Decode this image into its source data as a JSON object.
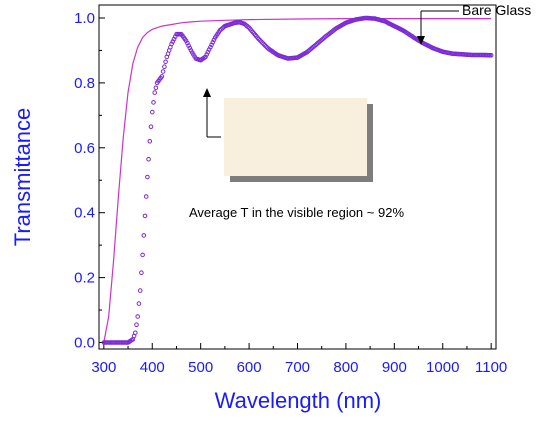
{
  "chart_data": {
    "type": "scatter",
    "xlabel": "Wavelength (nm)",
    "ylabel": "Transmittance",
    "xlim": [
      290,
      1110
    ],
    "ylim": [
      -0.02,
      1.04
    ],
    "x_ticks": [
      "300",
      "400",
      "500",
      "600",
      "700",
      "800",
      "900",
      "1000",
      "1100"
    ],
    "y_ticks": [
      "0.0",
      "0.2",
      "0.4",
      "0.6",
      "0.8",
      "1.0"
    ],
    "grid": false,
    "colors": {
      "axis_text": "#1a1aff",
      "sample_series": "#7a2bd6",
      "glass_series": "#cc33cc",
      "frame": "#000000"
    },
    "series": [
      {
        "name": "",
        "style": "open-circle markers",
        "x": [
          300,
          320,
          340,
          350,
          360,
          365,
          370,
          375,
          380,
          385,
          390,
          395,
          400,
          405,
          410,
          415,
          420,
          425,
          430,
          440,
          450,
          460,
          470,
          480,
          490,
          500,
          510,
          520,
          530,
          540,
          550,
          560,
          570,
          580,
          590,
          600,
          620,
          640,
          660,
          680,
          700,
          720,
          740,
          760,
          780,
          800,
          820,
          840,
          860,
          880,
          900,
          920,
          940,
          960,
          980,
          1000,
          1020,
          1040,
          1060,
          1080,
          1100
        ],
        "y": [
          0.0,
          0.0,
          0.0,
          0.0,
          0.01,
          0.03,
          0.08,
          0.16,
          0.27,
          0.39,
          0.51,
          0.62,
          0.71,
          0.77,
          0.8,
          0.81,
          0.82,
          0.85,
          0.88,
          0.92,
          0.95,
          0.95,
          0.93,
          0.9,
          0.875,
          0.87,
          0.88,
          0.91,
          0.94,
          0.962,
          0.975,
          0.98,
          0.985,
          0.987,
          0.982,
          0.97,
          0.935,
          0.905,
          0.885,
          0.875,
          0.878,
          0.895,
          0.92,
          0.945,
          0.968,
          0.985,
          0.995,
          1.0,
          0.998,
          0.99,
          0.975,
          0.96,
          0.94,
          0.922,
          0.907,
          0.896,
          0.89,
          0.888,
          0.886,
          0.886,
          0.885
        ]
      },
      {
        "name": "Bare Glass",
        "style": "line",
        "x": [
          300,
          310,
          320,
          330,
          340,
          350,
          360,
          370,
          380,
          390,
          400,
          420,
          440,
          460,
          480,
          500,
          550,
          600,
          700,
          800,
          900,
          1000,
          1100
        ],
        "y": [
          0.0,
          0.08,
          0.25,
          0.45,
          0.63,
          0.77,
          0.86,
          0.91,
          0.94,
          0.955,
          0.965,
          0.975,
          0.98,
          0.985,
          0.988,
          0.99,
          0.993,
          0.995,
          0.997,
          0.998,
          0.998,
          0.998,
          0.998
        ]
      }
    ],
    "annotations": [
      {
        "text": "Bare Glass",
        "points_to": "glass-line"
      },
      {
        "text": "Average T in the visible region ~ 92%"
      }
    ]
  }
}
